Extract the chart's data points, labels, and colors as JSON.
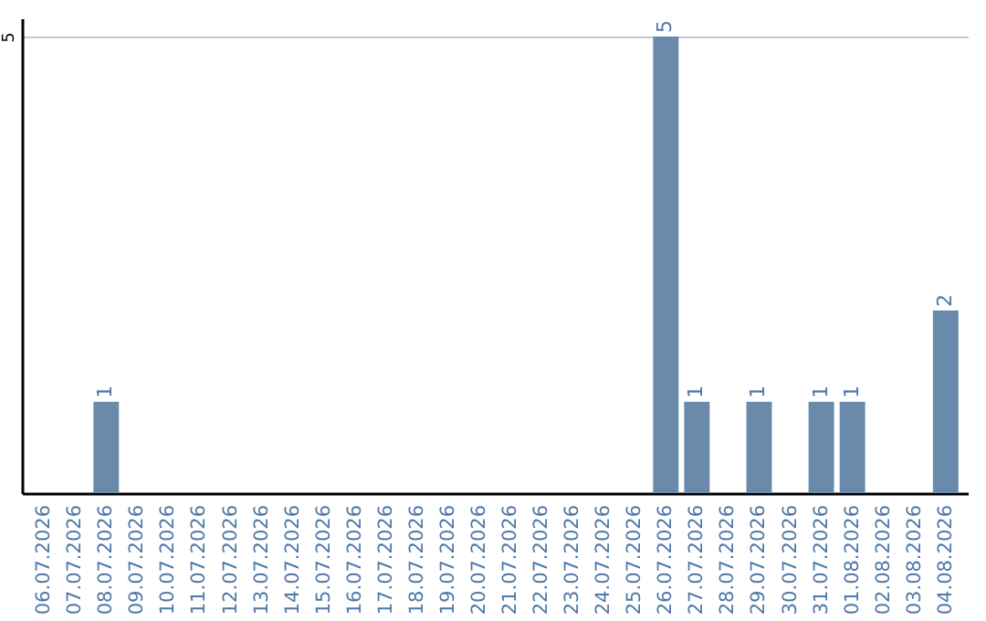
{
  "chart_data": {
    "type": "bar",
    "categories": [
      "06.07.2026",
      "07.07.2026",
      "08.07.2026",
      "09.07.2026",
      "10.07.2026",
      "11.07.2026",
      "12.07.2026",
      "13.07.2026",
      "14.07.2026",
      "15.07.2026",
      "16.07.2026",
      "17.07.2026",
      "18.07.2026",
      "19.07.2026",
      "20.07.2026",
      "21.07.2026",
      "22.07.2026",
      "23.07.2026",
      "24.07.2026",
      "25.07.2026",
      "26.07.2026",
      "27.07.2026",
      "28.07.2026",
      "29.07.2026",
      "30.07.2026",
      "31.07.2026",
      "01.08.2026",
      "02.08.2026",
      "03.08.2026",
      "04.08.2026"
    ],
    "values": [
      0,
      0,
      1,
      0,
      0,
      0,
      0,
      0,
      0,
      0,
      0,
      0,
      0,
      0,
      0,
      0,
      0,
      0,
      0,
      0,
      5,
      1,
      0,
      1,
      0,
      1,
      1,
      0,
      0,
      2
    ],
    "value_labels": [
      null,
      null,
      "1",
      null,
      null,
      null,
      null,
      null,
      null,
      null,
      null,
      null,
      null,
      null,
      null,
      null,
      null,
      null,
      null,
      null,
      "5",
      "1",
      null,
      "1",
      null,
      "1",
      "1",
      null,
      null,
      "2"
    ],
    "color": "#6a8aab",
    "ylim": [
      0,
      5.2
    ],
    "yticks": [
      5
    ],
    "grid": "y"
  }
}
